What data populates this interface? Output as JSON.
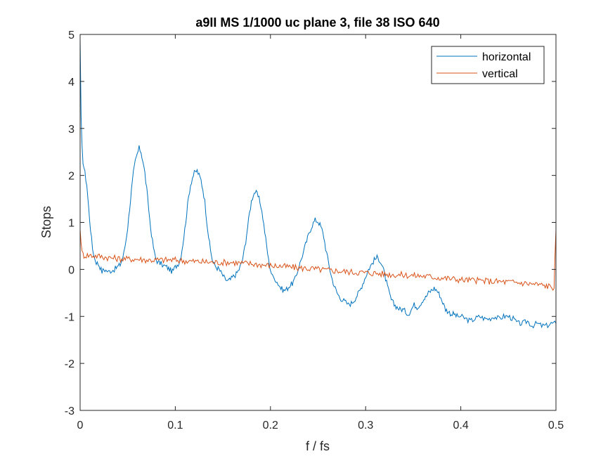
{
  "chart_data": {
    "type": "line",
    "title": "a9II MS 1/1000 uc plane 3, file 38 ISO 640",
    "xlabel": "f / fs",
    "ylabel": "Stops",
    "xlim": [
      0,
      0.5
    ],
    "ylim": [
      -3,
      5
    ],
    "x_ticks": [
      0,
      0.1,
      0.2,
      0.3,
      0.4,
      0.5
    ],
    "x_tick_labels": [
      "0",
      "0.1",
      "0.2",
      "0.3",
      "0.4",
      "0.5"
    ],
    "y_ticks": [
      -3,
      -2,
      -1,
      0,
      1,
      2,
      3,
      4,
      5
    ],
    "y_tick_labels": [
      "-3",
      "-2",
      "-1",
      "0",
      "1",
      "2",
      "3",
      "4",
      "5"
    ],
    "grid": false,
    "legend": "top-right",
    "series": [
      {
        "name": "horizontal",
        "color": "#0072BD",
        "points": [
          [
            0,
            4.9
          ],
          [
            0.001,
            3.2
          ],
          [
            0.002,
            2.6
          ],
          [
            0.003,
            2.3
          ],
          [
            0.005,
            2.05
          ],
          [
            0.007,
            1.8
          ],
          [
            0.009,
            1.3
          ],
          [
            0.011,
            0.85
          ],
          [
            0.013,
            0.45
          ],
          [
            0.015,
            0.25
          ],
          [
            0.017,
            0.15
          ],
          [
            0.019,
            0.12
          ],
          [
            0.021,
            0.05
          ],
          [
            0.023,
            -0.05
          ],
          [
            0.025,
            0.0
          ],
          [
            0.027,
            -0.02
          ],
          [
            0.03,
            -0.05
          ],
          [
            0.033,
            -0.02
          ],
          [
            0.036,
            0.0
          ],
          [
            0.039,
            0.05
          ],
          [
            0.042,
            0.1
          ],
          [
            0.044,
            0.2
          ],
          [
            0.046,
            0.35
          ],
          [
            0.048,
            0.6
          ],
          [
            0.05,
            0.9
          ],
          [
            0.052,
            1.3
          ],
          [
            0.054,
            1.7
          ],
          [
            0.056,
            2.05
          ],
          [
            0.058,
            2.3
          ],
          [
            0.06,
            2.45
          ],
          [
            0.062,
            2.58
          ],
          [
            0.064,
            2.5
          ],
          [
            0.066,
            2.3
          ],
          [
            0.068,
            2.05
          ],
          [
            0.07,
            1.7
          ],
          [
            0.072,
            1.3
          ],
          [
            0.074,
            0.9
          ],
          [
            0.076,
            0.6
          ],
          [
            0.078,
            0.35
          ],
          [
            0.08,
            0.2
          ],
          [
            0.082,
            0.15
          ],
          [
            0.085,
            0.12
          ],
          [
            0.088,
            0.08
          ],
          [
            0.091,
            0.05
          ],
          [
            0.094,
            0.0
          ],
          [
            0.097,
            -0.05
          ],
          [
            0.1,
            0.05
          ],
          [
            0.102,
            0.1
          ],
          [
            0.104,
            0.15
          ],
          [
            0.106,
            0.3
          ],
          [
            0.108,
            0.55
          ],
          [
            0.11,
            0.85
          ],
          [
            0.112,
            1.2
          ],
          [
            0.114,
            1.55
          ],
          [
            0.116,
            1.8
          ],
          [
            0.118,
            1.95
          ],
          [
            0.12,
            2.05
          ],
          [
            0.123,
            2.1
          ],
          [
            0.125,
            2.0
          ],
          [
            0.127,
            1.9
          ],
          [
            0.129,
            1.7
          ],
          [
            0.131,
            1.45
          ],
          [
            0.133,
            1.05
          ],
          [
            0.135,
            0.7
          ],
          [
            0.137,
            0.4
          ],
          [
            0.139,
            0.2
          ],
          [
            0.141,
            0.1
          ],
          [
            0.143,
            0.05
          ],
          [
            0.146,
            0.0
          ],
          [
            0.149,
            -0.1
          ],
          [
            0.152,
            -0.2
          ],
          [
            0.155,
            -0.25
          ],
          [
            0.158,
            -0.22
          ],
          [
            0.161,
            -0.15
          ],
          [
            0.164,
            -0.1
          ],
          [
            0.167,
            0.0
          ],
          [
            0.17,
            0.15
          ],
          [
            0.172,
            0.35
          ],
          [
            0.174,
            0.6
          ],
          [
            0.176,
            0.9
          ],
          [
            0.178,
            1.2
          ],
          [
            0.18,
            1.45
          ],
          [
            0.182,
            1.6
          ],
          [
            0.184,
            1.65
          ],
          [
            0.186,
            1.6
          ],
          [
            0.188,
            1.5
          ],
          [
            0.19,
            1.35
          ],
          [
            0.192,
            1.1
          ],
          [
            0.194,
            0.8
          ],
          [
            0.196,
            0.5
          ],
          [
            0.198,
            0.2
          ],
          [
            0.2,
            0.0
          ],
          [
            0.202,
            -0.15
          ],
          [
            0.205,
            -0.2
          ],
          [
            0.208,
            -0.3
          ],
          [
            0.211,
            -0.4
          ],
          [
            0.214,
            -0.45
          ],
          [
            0.217,
            -0.42
          ],
          [
            0.22,
            -0.35
          ],
          [
            0.223,
            -0.3
          ],
          [
            0.226,
            -0.2
          ],
          [
            0.229,
            0.0
          ],
          [
            0.232,
            0.2
          ],
          [
            0.235,
            0.4
          ],
          [
            0.238,
            0.6
          ],
          [
            0.241,
            0.8
          ],
          [
            0.244,
            0.95
          ],
          [
            0.247,
            1.05
          ],
          [
            0.25,
            1.02
          ],
          [
            0.252,
            0.95
          ],
          [
            0.254,
            0.85
          ],
          [
            0.256,
            0.7
          ],
          [
            0.258,
            0.45
          ],
          [
            0.26,
            0.25
          ],
          [
            0.262,
            0.05
          ],
          [
            0.264,
            -0.15
          ],
          [
            0.267,
            -0.35
          ],
          [
            0.27,
            -0.5
          ],
          [
            0.273,
            -0.6
          ],
          [
            0.276,
            -0.65
          ],
          [
            0.279,
            -0.7
          ],
          [
            0.282,
            -0.75
          ],
          [
            0.285,
            -0.72
          ],
          [
            0.288,
            -0.65
          ],
          [
            0.291,
            -0.55
          ],
          [
            0.294,
            -0.45
          ],
          [
            0.297,
            -0.3
          ],
          [
            0.3,
            -0.15
          ],
          [
            0.303,
            0.0
          ],
          [
            0.306,
            0.1
          ],
          [
            0.309,
            0.2
          ],
          [
            0.312,
            0.25
          ],
          [
            0.315,
            0.2
          ],
          [
            0.318,
            0.05
          ],
          [
            0.321,
            -0.2
          ],
          [
            0.324,
            -0.45
          ],
          [
            0.327,
            -0.65
          ],
          [
            0.33,
            -0.75
          ],
          [
            0.333,
            -0.8
          ],
          [
            0.336,
            -0.85
          ],
          [
            0.339,
            -0.85
          ],
          [
            0.342,
            -0.9
          ],
          [
            0.345,
            -0.95
          ],
          [
            0.348,
            -0.85
          ],
          [
            0.351,
            -0.75
          ],
          [
            0.354,
            -0.8
          ],
          [
            0.357,
            -0.75
          ],
          [
            0.36,
            -0.65
          ],
          [
            0.363,
            -0.6
          ],
          [
            0.366,
            -0.5
          ],
          [
            0.369,
            -0.45
          ],
          [
            0.372,
            -0.4
          ],
          [
            0.375,
            -0.45
          ],
          [
            0.378,
            -0.55
          ],
          [
            0.381,
            -0.7
          ],
          [
            0.384,
            -0.85
          ],
          [
            0.387,
            -0.9
          ],
          [
            0.39,
            -0.95
          ],
          [
            0.393,
            -0.95
          ],
          [
            0.396,
            -1.0
          ],
          [
            0.4,
            -1.0
          ],
          [
            0.405,
            -1.05
          ],
          [
            0.41,
            -1.1
          ],
          [
            0.415,
            -1.05
          ],
          [
            0.42,
            -1.0
          ],
          [
            0.425,
            -1.05
          ],
          [
            0.43,
            -1.05
          ],
          [
            0.435,
            -1.0
          ],
          [
            0.44,
            -1.05
          ],
          [
            0.445,
            -1.0
          ],
          [
            0.45,
            -1.0
          ],
          [
            0.455,
            -1.05
          ],
          [
            0.46,
            -1.15
          ],
          [
            0.465,
            -1.15
          ],
          [
            0.47,
            -1.1
          ],
          [
            0.475,
            -1.2
          ],
          [
            0.48,
            -1.15
          ],
          [
            0.485,
            -1.2
          ],
          [
            0.49,
            -1.2
          ],
          [
            0.495,
            -1.15
          ],
          [
            0.5,
            -1.15
          ]
        ]
      },
      {
        "name": "vertical",
        "color": "#D95319",
        "points": [
          [
            0,
            0.85
          ],
          [
            0.002,
            0.35
          ],
          [
            0.004,
            0.3
          ],
          [
            0.01,
            0.3
          ],
          [
            0.02,
            0.28
          ],
          [
            0.03,
            0.25
          ],
          [
            0.04,
            0.23
          ],
          [
            0.05,
            0.22
          ],
          [
            0.06,
            0.22
          ],
          [
            0.07,
            0.2
          ],
          [
            0.08,
            0.2
          ],
          [
            0.09,
            0.2
          ],
          [
            0.1,
            0.2
          ],
          [
            0.11,
            0.18
          ],
          [
            0.12,
            0.17
          ],
          [
            0.13,
            0.16
          ],
          [
            0.14,
            0.15
          ],
          [
            0.15,
            0.15
          ],
          [
            0.16,
            0.15
          ],
          [
            0.17,
            0.13
          ],
          [
            0.18,
            0.12
          ],
          [
            0.19,
            0.1
          ],
          [
            0.2,
            0.08
          ],
          [
            0.21,
            0.07
          ],
          [
            0.22,
            0.05
          ],
          [
            0.23,
            0.03
          ],
          [
            0.24,
            0.02
          ],
          [
            0.25,
            0.0
          ],
          [
            0.26,
            -0.02
          ],
          [
            0.27,
            -0.03
          ],
          [
            0.28,
            -0.05
          ],
          [
            0.29,
            -0.06
          ],
          [
            0.3,
            -0.07
          ],
          [
            0.31,
            -0.08
          ],
          [
            0.32,
            -0.1
          ],
          [
            0.33,
            -0.11
          ],
          [
            0.34,
            -0.12
          ],
          [
            0.35,
            -0.13
          ],
          [
            0.36,
            -0.14
          ],
          [
            0.37,
            -0.16
          ],
          [
            0.38,
            -0.18
          ],
          [
            0.39,
            -0.2
          ],
          [
            0.4,
            -0.22
          ],
          [
            0.41,
            -0.23
          ],
          [
            0.42,
            -0.24
          ],
          [
            0.43,
            -0.25
          ],
          [
            0.44,
            -0.26
          ],
          [
            0.45,
            -0.27
          ],
          [
            0.46,
            -0.28
          ],
          [
            0.47,
            -0.3
          ],
          [
            0.48,
            -0.32
          ],
          [
            0.49,
            -0.35
          ],
          [
            0.498,
            -0.38
          ],
          [
            0.5,
            0.85
          ]
        ]
      }
    ]
  }
}
